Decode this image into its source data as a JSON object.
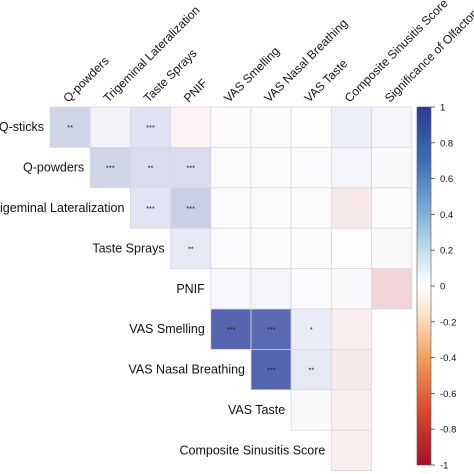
{
  "chart_data": {
    "type": "heatmap",
    "layout": "upper-triangle correlation matrix",
    "rows": [
      "Q-sticks",
      "Q-powders",
      "Trigeminal Lateralization",
      "Taste Sprays",
      "PNIF",
      "VAS Smelling",
      "VAS Nasal Breathing",
      "VAS Taste",
      "Composite Sinusitis Score"
    ],
    "columns": [
      "Q-powders",
      "Trigeminal Lateralization",
      "Taste Sprays",
      "PNIF",
      "VAS Smelling",
      "VAS Nasal Breathing",
      "VAS Taste",
      "Composite Sinusitis Score",
      "Significance of Olfactory"
    ],
    "values": [
      [
        0.22,
        0.06,
        0.15,
        -0.05,
        0.02,
        0.02,
        0.01,
        0.08,
        0.05
      ],
      [
        null,
        0.22,
        0.18,
        0.18,
        0.02,
        0.02,
        0.02,
        0.05,
        0.03
      ],
      [
        null,
        null,
        0.14,
        0.25,
        0.02,
        0.02,
        0.02,
        -0.1,
        0.02
      ],
      [
        null,
        null,
        null,
        0.12,
        0.02,
        0.02,
        0.02,
        0.01,
        0.03
      ],
      [
        null,
        null,
        null,
        null,
        0.04,
        0.05,
        0.02,
        0.03,
        -0.18
      ],
      [
        null,
        null,
        null,
        null,
        0.8,
        0.78,
        0.1,
        -0.08,
        null
      ],
      [
        null,
        null,
        null,
        null,
        null,
        0.8,
        0.12,
        -0.1,
        null
      ],
      [
        null,
        null,
        null,
        null,
        null,
        null,
        0.03,
        -0.08,
        null
      ],
      [
        null,
        null,
        null,
        null,
        null,
        null,
        null,
        -0.08,
        null
      ]
    ],
    "significance": [
      [
        "**",
        "",
        "***",
        "",
        "",
        "",
        "",
        "",
        ""
      ],
      [
        "",
        "***",
        "**",
        "***",
        "",
        "",
        "",
        "",
        ""
      ],
      [
        "",
        "",
        "***",
        "***",
        "",
        "",
        "",
        "",
        ""
      ],
      [
        "",
        "",
        "",
        "**",
        "",
        "",
        "",
        "",
        ""
      ],
      [
        "",
        "",
        "",
        "",
        "",
        "",
        "",
        "",
        ""
      ],
      [
        "",
        "",
        "",
        "",
        "***",
        "***",
        "*",
        "",
        ""
      ],
      [
        "",
        "",
        "",
        "",
        "",
        "***",
        "**",
        "",
        ""
      ],
      [
        "",
        "",
        "",
        "",
        "",
        "",
        "",
        "",
        ""
      ],
      [
        "",
        "",
        "",
        "",
        "",
        "",
        "",
        "",
        ""
      ]
    ],
    "colorbar": {
      "ticks": [
        "1",
        "0.8",
        "0.6",
        "0.4",
        "0.2",
        "0",
        "-0.2",
        "-0.4",
        "-0.6",
        "-0.8",
        "-1"
      ],
      "range": [
        -1,
        1
      ],
      "colors": {
        "negative": "#b2182b",
        "neutral": "#ffffff",
        "positive": "#2c3f9c"
      }
    }
  }
}
